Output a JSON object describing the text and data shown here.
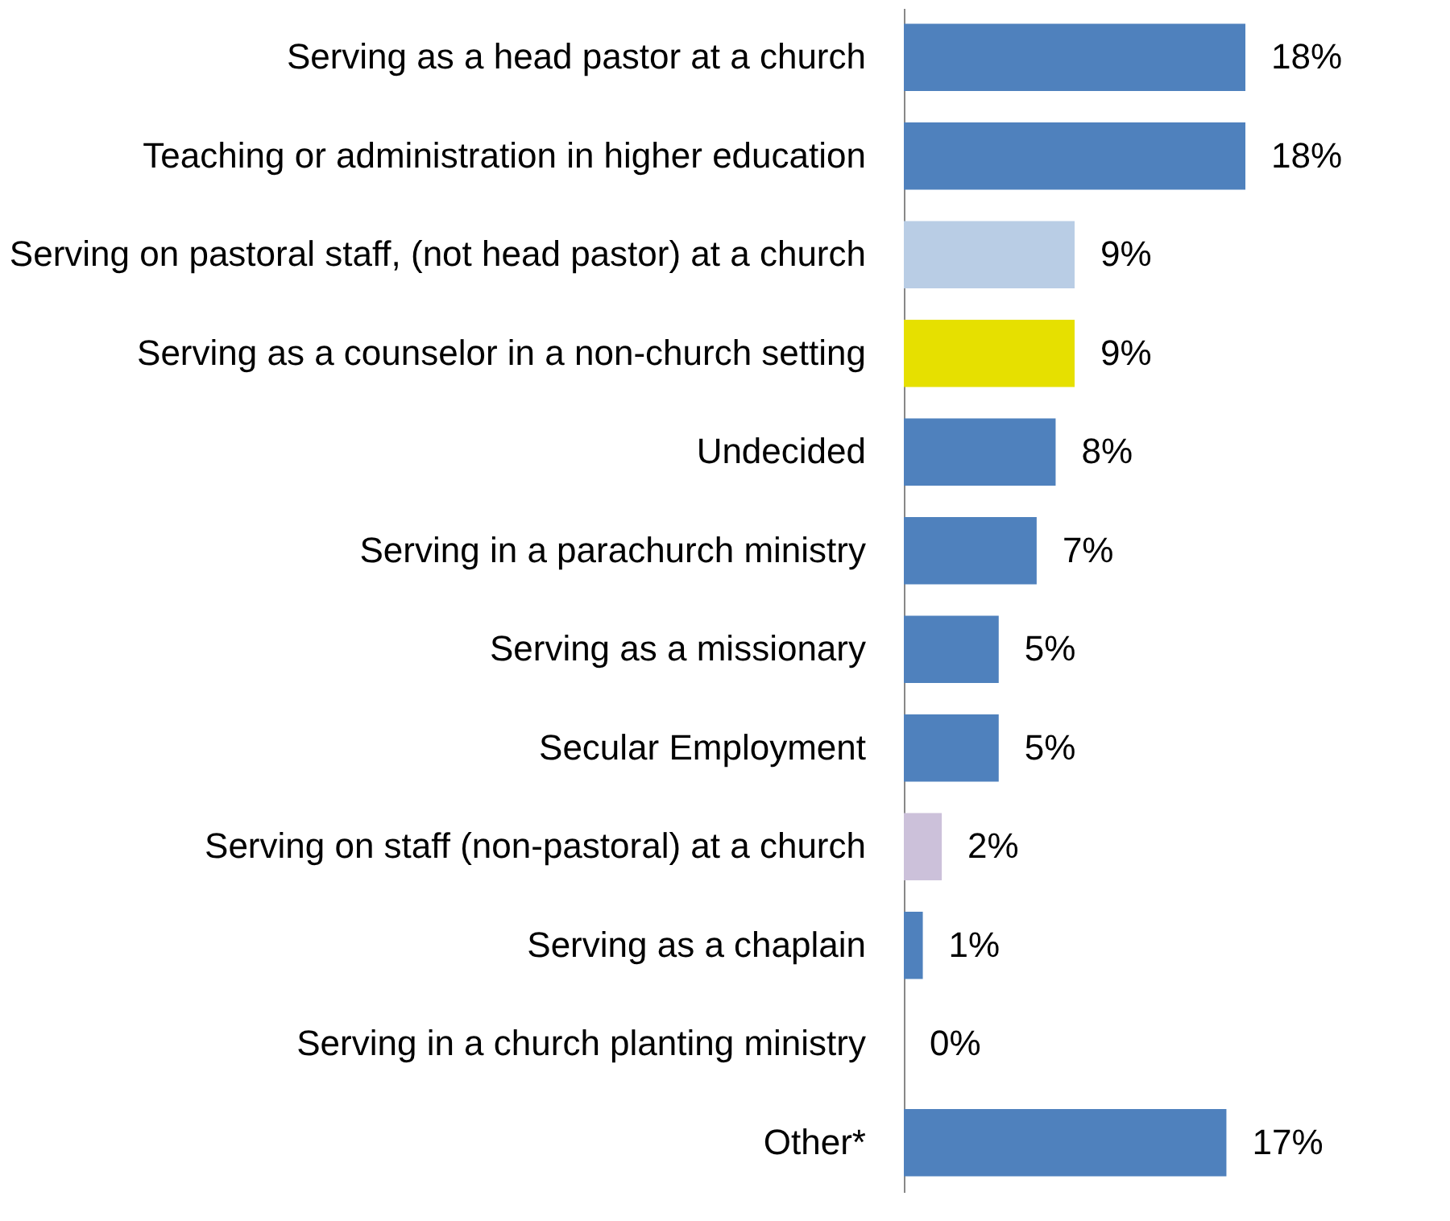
{
  "chart_data": {
    "type": "bar",
    "orientation": "horizontal",
    "data_labels": true,
    "categories": [
      "Serving as a head pastor at a church",
      "Teaching or administration in higher education",
      "Serving on pastoral staff, (not head pastor) at a church",
      "Serving as a counselor in a non-church setting",
      "Undecided",
      "Serving in a parachurch ministry",
      "Serving as a missionary",
      "Secular Employment",
      "Serving on staff (non-pastoral) at a church",
      "Serving as a chaplain",
      "Serving in a church planting ministry",
      "Other*"
    ],
    "values": [
      18,
      18,
      9,
      9,
      8,
      7,
      5,
      5,
      2,
      1,
      0,
      17
    ],
    "value_labels": [
      "18%",
      "18%",
      "9%",
      "9%",
      "8%",
      "7%",
      "5%",
      "5%",
      "2%",
      "1%",
      "0%",
      "17%"
    ],
    "colors": [
      "#4f81bd",
      "#4f81bd",
      "#b9cde5",
      "#e6e000",
      "#4f81bd",
      "#4f81bd",
      "#4f81bd",
      "#4f81bd",
      "#ccc1da",
      "#4f81bd",
      "#4f81bd",
      "#4f81bd"
    ]
  }
}
